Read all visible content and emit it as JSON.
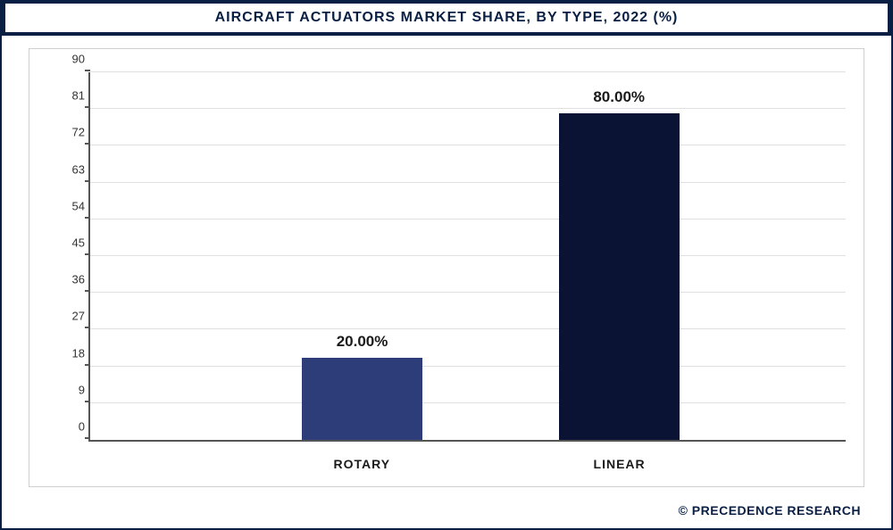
{
  "chart": {
    "type": "bar",
    "title": "AIRCRAFT ACTUATORS MARKET SHARE, BY TYPE, 2022 (%)",
    "title_fontsize": 16,
    "title_color": "#0a1f44",
    "title_bar_bg": "#0a1f44",
    "background_color": "#ffffff",
    "ylim": [
      0,
      90
    ],
    "ytick_step": 9,
    "yticks": [
      0,
      9,
      18,
      27,
      36,
      45,
      54,
      63,
      72,
      81,
      90
    ],
    "grid_color": "#e0e0e0",
    "axis_color": "#555555",
    "label_fontsize": 14,
    "value_fontsize": 17,
    "categories": [
      "ROTARY",
      "LINEAR"
    ],
    "values": [
      20.0,
      80.0
    ],
    "value_labels": [
      "20.00%",
      "80.00%"
    ],
    "bar_colors": [
      "#2d3d7a",
      "#0a1333"
    ],
    "bar_width_pct": 16,
    "bar_positions_pct": [
      28,
      62
    ]
  },
  "footer": {
    "text": "© PRECEDENCE RESEARCH",
    "color": "#0a1f44"
  }
}
